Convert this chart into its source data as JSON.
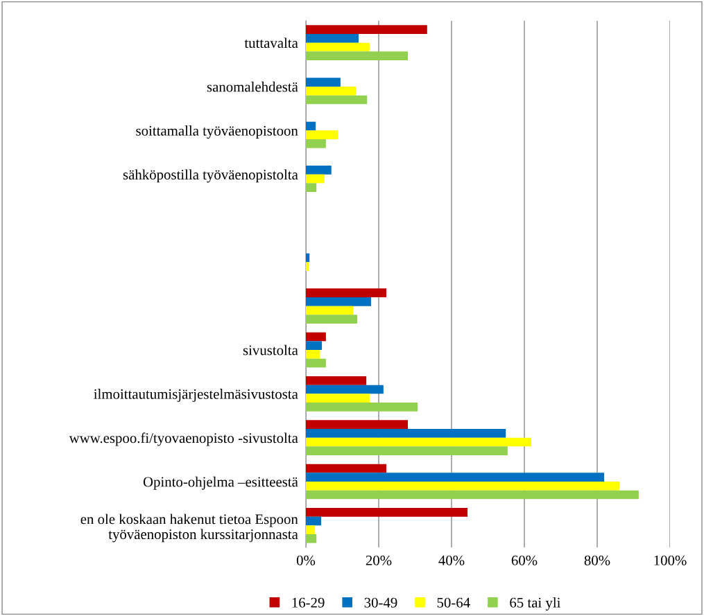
{
  "chart_data": {
    "type": "bar",
    "orientation": "horizontal",
    "categories": [
      "tuttavalta",
      "sanomalehdestä",
      "soittamalla työväenopistoon",
      "sähköpostilla työväenopistolta",
      null,
      null,
      null,
      "sivustolta",
      "ilmoittautumisjärjestelmäsivustosta",
      "www.espoo.fi/tyovaenopisto -sivustolta",
      "Opinto-ohjelma –esitteestä",
      "en ole koskaan hakenut tietoa Espoon\ntyöväenopiston kurssitarjonnasta"
    ],
    "series": [
      {
        "name": "16-29",
        "color": "#c00000",
        "values": [
          33.3,
          0,
          0,
          0,
          0,
          0,
          22.1,
          5.5,
          16.6,
          28,
          22.1,
          44.4
        ]
      },
      {
        "name": "30-49",
        "color": "#0070c0",
        "values": [
          14.5,
          9.5,
          2.7,
          7,
          0,
          1,
          17.9,
          4.4,
          21.3,
          54.9,
          81.9,
          4.2
        ]
      },
      {
        "name": "50-64",
        "color": "#ffff00",
        "values": [
          17.5,
          13.7,
          8.8,
          5.1,
          0,
          0.8,
          13,
          3.8,
          17.5,
          61.9,
          86.1,
          2.5
        ]
      },
      {
        "name": "65 tai yli",
        "color": "#92d050",
        "values": [
          28,
          16.8,
          5.5,
          2.9,
          0,
          0,
          14.1,
          5.5,
          30.7,
          55.4,
          91.4,
          2.9
        ]
      }
    ],
    "xlim": [
      0,
      100
    ],
    "xticks": [
      {
        "value": 0,
        "label": "0%"
      },
      {
        "value": 20,
        "label": "20%"
      },
      {
        "value": 40,
        "label": "40%"
      },
      {
        "value": 60,
        "label": "60%"
      },
      {
        "value": 80,
        "label": "80%"
      },
      {
        "value": 100,
        "label": "100%"
      }
    ],
    "grid": "x",
    "legend": "bottom"
  }
}
